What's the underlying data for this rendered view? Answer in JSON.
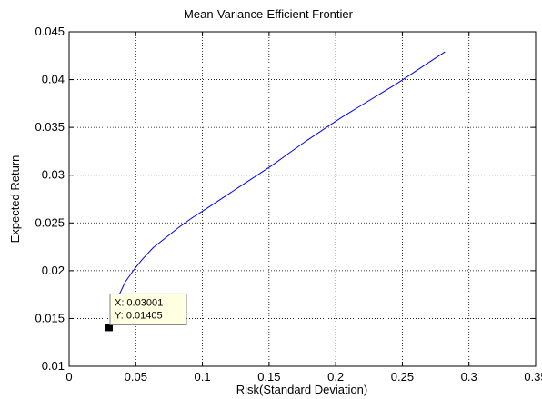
{
  "chart_data": {
    "type": "line",
    "title": "Mean-Variance-Efficient Frontier",
    "xlabel": "Risk(Standard Deviation)",
    "ylabel": "Expected Return",
    "xlim": [
      0,
      0.35
    ],
    "ylim": [
      0.01,
      0.045
    ],
    "xticks": [
      0,
      0.05,
      0.1,
      0.15,
      0.2,
      0.25,
      0.3,
      0.35
    ],
    "xtick_labels": [
      "0",
      "0.05",
      "0.1",
      "0.15",
      "0.2",
      "0.25",
      "0.3",
      "0.35"
    ],
    "yticks": [
      0.01,
      0.015,
      0.02,
      0.025,
      0.03,
      0.035,
      0.04,
      0.045
    ],
    "ytick_labels": [
      "0.01",
      "0.015",
      "0.02",
      "0.025",
      "0.03",
      "0.035",
      "0.04",
      "0.045"
    ],
    "grid": true,
    "line_color": "#0000ff",
    "series": [
      {
        "x": [
          0.03,
          0.033,
          0.037,
          0.042,
          0.048,
          0.055,
          0.063,
          0.072,
          0.082,
          0.092,
          0.102,
          0.115,
          0.128,
          0.14,
          0.152,
          0.165,
          0.178,
          0.192,
          0.205,
          0.218,
          0.232,
          0.245,
          0.258,
          0.27,
          0.282
        ],
        "y": [
          0.01405,
          0.0157,
          0.0173,
          0.0188,
          0.02,
          0.0212,
          0.0224,
          0.0234,
          0.0245,
          0.0255,
          0.0264,
          0.0276,
          0.0288,
          0.0299,
          0.031,
          0.0323,
          0.0336,
          0.0349,
          0.0361,
          0.0372,
          0.0384,
          0.0395,
          0.0407,
          0.0418,
          0.0429
        ]
      }
    ],
    "datatip": {
      "x_text": "X: 0.03001",
      "y_text": "Y: 0.01405",
      "x": 0.03001,
      "y": 0.01405
    }
  }
}
